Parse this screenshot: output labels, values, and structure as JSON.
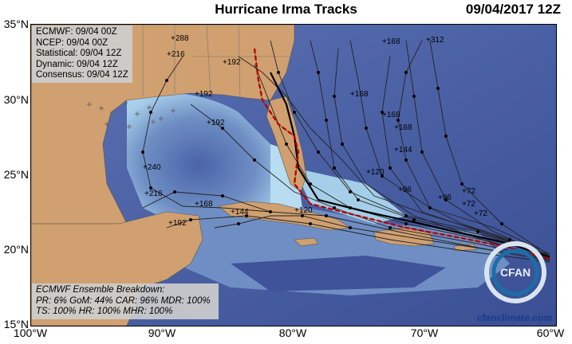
{
  "header": {
    "title": "Hurricane Irma Tracks",
    "timestamp": "09/04/2017 12Z"
  },
  "models": [
    "ECMWF: 09/04 00Z",
    "NCEP: 09/04 00Z",
    "Statistical: 09/04 12Z",
    "Dynamic: 09/04 12Z",
    "Consensus: 09/04 12Z"
  ],
  "breakdown": {
    "title": "ECMWF Ensemble Breakdown:",
    "line1": "PR: 6% GoM: 44% CAR: 96% MDR: 100%",
    "line2": "TS: 100% HR: 100% MHR: 100%"
  },
  "axes": {
    "lat_labels": [
      "35°N",
      "30°N",
      "25°N",
      "20°N",
      "15°N"
    ],
    "lon_labels": [
      "100°W",
      "90°W",
      "80°W",
      "70°W",
      "60°W"
    ]
  },
  "credit": "cfanclimate.com",
  "logo_text": "CFAN",
  "hour_labels": [
    "+288",
    "+216",
    "+192",
    "+192",
    "+192",
    "+168",
    "+168",
    "+312",
    "+240",
    "+216",
    "+192",
    "+168",
    "+144",
    "+120",
    "+120",
    "+96",
    "+96",
    "+72",
    "+72",
    "+72",
    "+168",
    "+168",
    "+144"
  ],
  "colors": {
    "ocean_deep": "#3c4e93",
    "ocean_mid": "#6f8fc4",
    "ocean_shallow": "#b8dcf0",
    "land": "#d0a070",
    "consensus": "#e10000",
    "track": "#222222"
  }
}
